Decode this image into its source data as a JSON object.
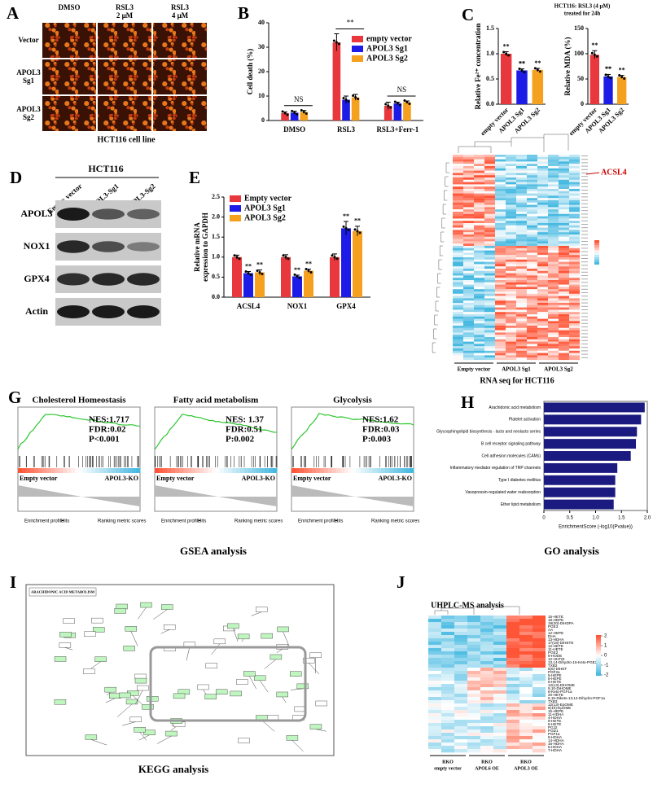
{
  "panels": {
    "A": {
      "label": "A",
      "columns": [
        [
          "DMSO"
        ],
        [
          "RSL3",
          "2 μM"
        ],
        [
          "RSL3",
          "4 μM"
        ]
      ],
      "rows": [
        [
          "Vector"
        ],
        [
          "APOL3",
          "Sg1"
        ],
        [
          "APOL3",
          "Sg2"
        ]
      ],
      "caption": "HCT116 cell line"
    },
    "C": {
      "label": "C",
      "title": [
        "HCT116: RSL3 (4 μM)",
        "treated for 24h"
      ]
    },
    "D": {
      "label": "D",
      "title": "HCT116",
      "lanes": [
        "Empty vector",
        "APOL3-Sg1",
        "APOL3-Sg2"
      ],
      "rows": [
        "APOL3",
        "NOX1",
        "GPX4",
        "Actin"
      ]
    },
    "F": {
      "label": "F",
      "highlight": "ACSL4",
      "groups": [
        "Empty vector",
        "APOL3 Sg1",
        "APOL3 Sg2"
      ],
      "caption": "RNA seq for HCT116"
    },
    "G": {
      "label": "G",
      "caption": "GSEA analysis",
      "legend": [
        "Enrichment profile",
        "Hits",
        "Ranking metric scores"
      ],
      "plots": [
        {
          "title": "Cholesterol Homeostasis",
          "stats": [
            "NES:1.717",
            "FDR:0.02",
            "P<0.001"
          ],
          "left": "Empty vector",
          "right": "APOL3-KO"
        },
        {
          "title": "Fatty acid metabolism",
          "stats": [
            "NES: 1.37",
            "FDR:0.51",
            "P:0.002"
          ],
          "left": "Empty vector",
          "right": "APOL3-KO"
        },
        {
          "title": "Glycolysis",
          "stats": [
            "NES:1.62",
            "FDR:0.03",
            "P:0.003"
          ],
          "left": "Empty vector",
          "right": "APOL3-KO"
        }
      ]
    },
    "H": {
      "label": "H",
      "caption": "GO analysis"
    },
    "I": {
      "label": "I",
      "title": "ARACHIDONIC ACID METABOLISM",
      "caption": "KEGG analysis"
    },
    "J": {
      "label": "J",
      "title": "UHPLC-MS analysis",
      "rows": [
        "15-HETE",
        "18-HEPE",
        "19(20)-DiHDPA",
        "PGE3",
        "AA",
        "12-HEPE",
        "DHA",
        "13-HDHA",
        "17(18)-DiHETE",
        "12-HETE",
        "11-HETE",
        "PGE2",
        "9-HODE",
        "12-HHTrE",
        "13,14-Dihydro-15-Keto-PGE2",
        "TXB2",
        "5(6)-DiHET",
        "PGF2a",
        "5-HEPE",
        "8-HEPE",
        "8-HETE",
        "12(13)-DiHOME",
        "9,10-DiHOME",
        "6-Keto-PGF1a",
        "20-HETE",
        "6,15-Diketo-13,14-Dihydro-PGF1a",
        "TXB3",
        "12(13)-EpOME",
        "9(10)-EpOME",
        "15-HEPE",
        "11-HDHA",
        "4-HDHA",
        "9-HETE",
        "5-HETE",
        "PGJ2",
        "PGD1",
        "PGF1a",
        "8-HDHA",
        "14-HDHA",
        "16-HDHA",
        "5-HDHA",
        "7-HDHA"
      ],
      "groups": [
        [
          "RKO",
          "empty vector"
        ],
        [
          "RKO",
          "APOL6 OE"
        ],
        [
          "RKO",
          "APOL3 OE"
        ]
      ],
      "scale_ticks": [
        2,
        1,
        0,
        -1,
        -2
      ]
    }
  },
  "chart_data": [
    {
      "type": "bar",
      "panel_label": "B",
      "y_label": "Cell death (%)",
      "categories": [
        "DMSO",
        "RSL3",
        "RSL3+Ferr-1"
      ],
      "series": [
        {
          "name": "empty vector",
          "color": "#e8383d",
          "values": [
            3,
            32,
            6
          ],
          "errors": [
            0.5,
            3.5,
            1.5
          ]
        },
        {
          "name": "APOL3 Sg1",
          "color": "#1c1ce6",
          "values": [
            3.2,
            8.5,
            7
          ],
          "errors": [
            0.6,
            1.5,
            0.5
          ]
        },
        {
          "name": "APOL3 Sg2",
          "color": "#f5a01e",
          "values": [
            3.5,
            9.5,
            7.5
          ],
          "errors": [
            0.6,
            1.2,
            0.5
          ]
        }
      ],
      "annotations": [
        "NS",
        "**",
        "NS"
      ],
      "ylim": [
        0,
        40
      ],
      "yticks": [
        0,
        10,
        20,
        30,
        40
      ]
    },
    {
      "type": "bar",
      "y_label": "Relative Fe²⁺ concentration",
      "categories": [
        "empty vector",
        "APOL3 Sg1",
        "APOL3 Sg2"
      ],
      "values": [
        1,
        0.67,
        0.68
      ],
      "errors": [
        0.04,
        0.03,
        0.03
      ],
      "colors": [
        "#e8383d",
        "#1c1ce6",
        "#f5a01e"
      ],
      "annotations": [
        "**",
        "**"
      ],
      "ylim": [
        0,
        1.5
      ],
      "yticks": [
        {
          "value": 0,
          "label": "0.0"
        },
        0.5,
        {
          "value": 1,
          "label": "1.0"
        },
        1.5
      ]
    },
    {
      "type": "bar",
      "y_label": "Relative MDA (%)",
      "categories": [
        "empty vector",
        "APOL3 Sg1",
        "APOL3 Sg2"
      ],
      "values": [
        98,
        55,
        54
      ],
      "errors": [
        8,
        4,
        3
      ],
      "colors": [
        "#e8383d",
        "#1c1ce6",
        "#f5a01e"
      ],
      "annotations": [
        "**",
        "**"
      ],
      "ylim": [
        0,
        150
      ],
      "yticks": [
        0,
        50,
        100,
        150
      ]
    },
    {
      "type": "bar",
      "panel_label": "E",
      "y_label": [
        "Relative mRNA",
        "expression to GAPDH"
      ],
      "categories": [
        "ACSL4",
        "NOX1",
        "GPX4"
      ],
      "series": [
        {
          "name": "Empty vector",
          "color": "#e8383d",
          "values": [
            1,
            1,
            1
          ],
          "errors": [
            0.05,
            0.06,
            0.08
          ]
        },
        {
          "name": "APOL3 Sg1",
          "color": "#1c1ce6",
          "values": [
            0.6,
            0.52,
            1.72
          ],
          "errors": [
            0.04,
            0.03,
            0.17
          ],
          "annotations": [
            "**",
            "**",
            "**"
          ]
        },
        {
          "name": "APOL3 Sg2",
          "color": "#f5a01e",
          "values": [
            0.62,
            0.66,
            1.65
          ],
          "errors": [
            0.06,
            0.04,
            0.12
          ],
          "annotations": [
            "**",
            "**",
            "**"
          ]
        }
      ],
      "ylim": [
        0,
        2.5
      ],
      "yticks": [
        {
          "value": 0,
          "label": "0.0"
        },
        0.5,
        {
          "value": 1,
          "label": "1.0"
        },
        1.5,
        {
          "value": 2,
          "label": "2.0"
        },
        2.5
      ]
    },
    {
      "type": "hbar",
      "x_label": "EnrichmentScore (-log10(Pvalue))",
      "color": "#1a1a80",
      "categories": [
        "Arachidonic acid metabolism",
        "Platelet activation",
        "Glycosphingolipid biosynthesis - lacto and neolacto series",
        "B cell receptor signaling pathway",
        "Cell adhesion molecules (CAMs)",
        "Inflammatory mediator regulation of TRP channels",
        "Type I diabetes mellitus",
        "Vasopressin-regulated water reabsorption",
        "Ether lipid metabolism"
      ],
      "values": [
        1.95,
        1.88,
        1.8,
        1.78,
        1.68,
        1.42,
        1.38,
        1.38,
        1.35
      ],
      "xlim": [
        0,
        2.0
      ],
      "xticks": [
        0,
        0.5,
        {
          "value": 1,
          "label": "1.0"
        },
        1.5,
        {
          "value": 2,
          "label": "2.0"
        }
      ]
    }
  ]
}
